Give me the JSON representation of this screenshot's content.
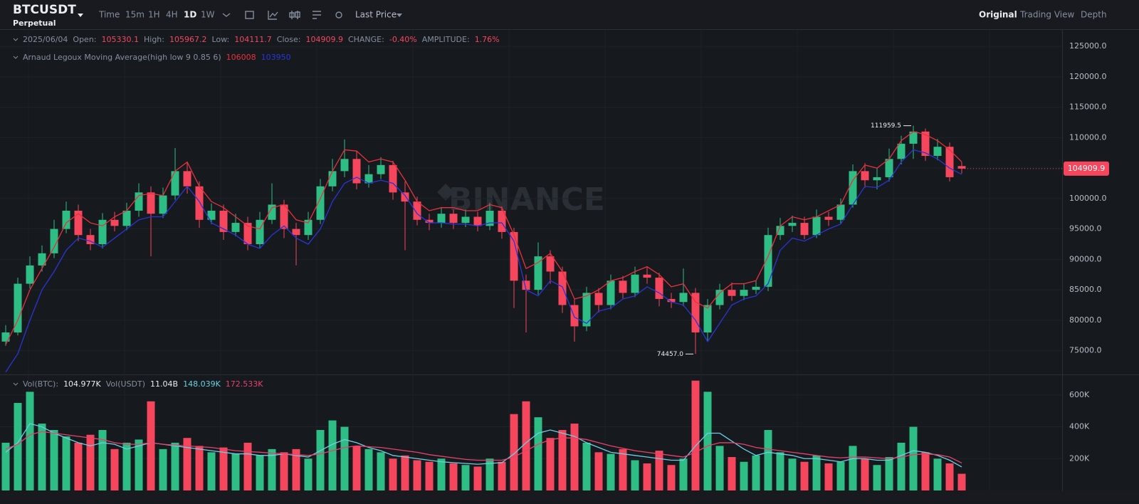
{
  "header": {
    "symbol": "BTCUSDT",
    "contract": "Perpetual",
    "intervals": [
      "Time",
      "15m",
      "1H",
      "4H",
      "1D",
      "1W"
    ],
    "active_interval": 4,
    "price_type": "Last Price",
    "views": [
      "Original",
      "Trading View",
      "Depth"
    ],
    "active_view": 0
  },
  "chart_data": {
    "type": "candlestick",
    "watermark": "BINANCE",
    "legend": {
      "date": "2025/06/04",
      "labels": [
        "Open:",
        "High:",
        "Low:",
        "Close:"
      ],
      "change_label": "CHANGE:",
      "change": "-0.40%",
      "amplitude_label": "AMPLITUDE:",
      "amplitude": "1.76%"
    },
    "indicator": "Arnaud Legoux Moving Average(high  low  9  0.85  6)",
    "up_color": "#2ebd85",
    "down_color": "#f6465d",
    "open": [
      76500,
      78000,
      86000,
      89000,
      91000,
      95000,
      98000,
      94000,
      92500,
      96500,
      95500,
      98000,
      101000,
      97500,
      100500,
      104500,
      102000,
      96500,
      98000,
      94500,
      96000,
      92500,
      96500,
      99000,
      95000,
      94000,
      96500,
      102000,
      104500,
      106500,
      102500,
      104000,
      105500,
      101000,
      99500,
      96500,
      96000,
      97500,
      96000,
      97000,
      95500,
      98000,
      94500,
      86500,
      85000,
      90500,
      88000,
      82500,
      79000,
      84500,
      82500,
      86500,
      84500,
      87500,
      87000,
      83500,
      83000,
      84500,
      78000,
      82500,
      85000,
      84000,
      85000,
      85500,
      94000,
      95500,
      96000,
      94000,
      97000,
      96500,
      99000,
      104500,
      103000,
      103500,
      106500,
      109000,
      111000,
      107000,
      108500,
      105330.1
    ],
    "high": [
      79200,
      87000,
      90500,
      92300,
      96500,
      99500,
      99000,
      95000,
      97600,
      97800,
      99300,
      102500,
      102000,
      101800,
      108300,
      106000,
      102800,
      99200,
      99000,
      97500,
      97000,
      97800,
      102500,
      99800,
      96000,
      97800,
      103200,
      106500,
      109700,
      107800,
      105500,
      106800,
      106200,
      102800,
      100300,
      97500,
      98600,
      98200,
      98200,
      97800,
      99300,
      98700,
      95200,
      87500,
      92800,
      91500,
      88800,
      83500,
      85500,
      85300,
      87500,
      87300,
      88800,
      88800,
      87800,
      84500,
      88500,
      85300,
      83500,
      86000,
      86200,
      86000,
      86500,
      95200,
      96800,
      97200,
      97000,
      98200,
      97800,
      100000,
      105600,
      105800,
      105000,
      108200,
      110300,
      111959.5,
      111500,
      109800,
      109200,
      105967.2
    ],
    "low": [
      75800,
      77500,
      85200,
      88000,
      90200,
      94300,
      93000,
      91500,
      91800,
      94600,
      94800,
      97000,
      90500,
      96800,
      99800,
      100800,
      95200,
      95800,
      93200,
      93800,
      91500,
      91800,
      95800,
      93500,
      89000,
      93200,
      95800,
      101200,
      103500,
      101500,
      101800,
      103200,
      99800,
      91500,
      95600,
      94800,
      95200,
      95000,
      95300,
      94600,
      94800,
      93400,
      82000,
      78000,
      84200,
      86000,
      81200,
      76500,
      78200,
      81300,
      81800,
      83600,
      83800,
      86000,
      82300,
      82000,
      82300,
      74457,
      76500,
      81800,
      83200,
      83300,
      84300,
      84800,
      93200,
      94500,
      93300,
      93500,
      95500,
      95800,
      98500,
      101800,
      101500,
      102800,
      105600,
      106500,
      106200,
      106300,
      102800,
      104111.7
    ],
    "close": [
      78000,
      86000,
      89000,
      91000,
      95000,
      98000,
      94000,
      92500,
      96500,
      95500,
      98000,
      101000,
      97500,
      100500,
      104500,
      102000,
      96500,
      98000,
      94500,
      96000,
      92500,
      96500,
      99000,
      95000,
      94000,
      96500,
      102000,
      104500,
      106500,
      102500,
      104000,
      105500,
      101000,
      99500,
      96500,
      96000,
      97500,
      96000,
      97000,
      95500,
      98000,
      94500,
      86500,
      85000,
      90500,
      88000,
      82500,
      79000,
      84500,
      82500,
      86500,
      84500,
      87500,
      87000,
      83500,
      83000,
      84500,
      78000,
      82500,
      85000,
      84000,
      85000,
      85500,
      94000,
      95500,
      96000,
      94000,
      97000,
      96500,
      99000,
      104500,
      103000,
      103500,
      106500,
      109000,
      111000,
      107000,
      108500,
      103500,
      104909.9
    ],
    "ma_lines": [
      {
        "color": "#e8313c",
        "values": [
          76000,
          80000,
          85000,
          88500,
          92000,
          96000,
          97500,
          96000,
          95500,
          97000,
          98000,
          100500,
          100800,
          100500,
          104500,
          106000,
          102000,
          99500,
          98500,
          97000,
          95500,
          95000,
          98500,
          99000,
          96500,
          96000,
          100000,
          104500,
          108000,
          107800,
          106000,
          106500,
          106000,
          103000,
          99500,
          98000,
          98500,
          98500,
          98000,
          98000,
          99000,
          98500,
          94000,
          88500,
          89500,
          91000,
          88000,
          83500,
          84000,
          85000,
          86500,
          87000,
          88000,
          88800,
          87500,
          85500,
          86000,
          83000,
          82000,
          84500,
          86000,
          86000,
          86500,
          90500,
          95500,
          97000,
          96500,
          97000,
          98000,
          99000,
          103000,
          105500,
          105000,
          106500,
          109500,
          111000,
          110500,
          109500,
          108000,
          106008
        ]
      },
      {
        "color": "#2a35d6",
        "values": [
          71500,
          74500,
          80000,
          85000,
          88000,
          91500,
          93500,
          93000,
          92000,
          93500,
          95000,
          96500,
          97000,
          97000,
          99500,
          102000,
          99500,
          96000,
          95000,
          94000,
          92500,
          91800,
          94000,
          95500,
          93500,
          92500,
          95000,
          99500,
          102500,
          103500,
          102500,
          103000,
          102500,
          100500,
          97500,
          96000,
          96000,
          95800,
          95800,
          95500,
          96000,
          96000,
          93000,
          85000,
          84000,
          86500,
          85500,
          80500,
          79500,
          81500,
          82000,
          83500,
          84000,
          85500,
          84500,
          83000,
          82500,
          80000,
          76500,
          79500,
          82500,
          83500,
          84000,
          86000,
          91500,
          93500,
          93000,
          94000,
          95000,
          95800,
          99000,
          102000,
          101800,
          103000,
          106000,
          108000,
          107500,
          106500,
          105000,
          103950
        ]
      }
    ],
    "ylim": [
      71100,
      127700
    ],
    "yticks": [
      {
        "value": 75000,
        "label": "75000.0"
      },
      {
        "value": 80000,
        "label": "80000.0"
      },
      {
        "value": 85000,
        "label": "85000.0"
      },
      {
        "value": 90000,
        "label": "90000.0"
      },
      {
        "value": 95000,
        "label": "95000.0"
      },
      {
        "value": 100000,
        "label": "100000.0"
      },
      {
        "value": 105000,
        "label": "105000.0"
      },
      {
        "value": 110000,
        "label": "110000.0"
      },
      {
        "value": 115000,
        "label": "115000.0"
      },
      {
        "value": 120000,
        "label": "120000.0"
      },
      {
        "value": 125000,
        "label": "125000.0"
      }
    ],
    "high_annotation": "111959.5",
    "low_annotation": "74457.0",
    "volume": {
      "legend": {
        "label": "Vol(BTC):",
        "value": "104.977K",
        "usdt_label": "Vol(USDT)",
        "usdt_value": "11.04B",
        "ma_values": [
          "148.039K",
          "172.533K"
        ]
      },
      "values": [
        300000,
        550000,
        620000,
        420000,
        380000,
        340000,
        300000,
        350000,
        380000,
        260000,
        300000,
        320000,
        560000,
        260000,
        300000,
        330000,
        280000,
        240000,
        270000,
        230000,
        300000,
        220000,
        260000,
        240000,
        260000,
        200000,
        380000,
        440000,
        400000,
        280000,
        260000,
        240000,
        200000,
        220000,
        190000,
        180000,
        200000,
        170000,
        160000,
        150000,
        200000,
        180000,
        480000,
        560000,
        460000,
        330000,
        380000,
        420000,
        300000,
        240000,
        230000,
        260000,
        190000,
        170000,
        250000,
        160000,
        200000,
        690000,
        620000,
        280000,
        210000,
        180000,
        220000,
        380000,
        240000,
        200000,
        180000,
        220000,
        170000,
        180000,
        280000,
        200000,
        160000,
        210000,
        300000,
        400000,
        240000,
        200000,
        170000,
        104977
      ],
      "ma_lines": [
        {
          "color": "#6ccfe4",
          "values": [
            240000,
            300000,
            420000,
            400000,
            360000,
            330000,
            300000,
            280000,
            300000,
            290000,
            260000,
            280000,
            300000,
            290000,
            280000,
            270000,
            260000,
            250000,
            240000,
            230000,
            230000,
            220000,
            220000,
            230000,
            220000,
            210000,
            250000,
            290000,
            320000,
            300000,
            270000,
            250000,
            220000,
            210000,
            200000,
            190000,
            180000,
            175000,
            170000,
            165000,
            170000,
            175000,
            230000,
            300000,
            360000,
            380000,
            360000,
            340000,
            300000,
            270000,
            240000,
            230000,
            220000,
            210000,
            200000,
            190000,
            190000,
            280000,
            360000,
            360000,
            310000,
            260000,
            220000,
            240000,
            230000,
            220000,
            200000,
            200000,
            190000,
            180000,
            200000,
            200000,
            190000,
            190000,
            220000,
            250000,
            240000,
            220000,
            190000,
            148039
          ]
        },
        {
          "color": "#e8416a",
          "values": [
            260000,
            290000,
            350000,
            370000,
            360000,
            350000,
            340000,
            330000,
            320000,
            300000,
            290000,
            290000,
            300000,
            290000,
            285000,
            280000,
            275000,
            270000,
            260000,
            250000,
            245000,
            240000,
            235000,
            230000,
            225000,
            220000,
            230000,
            250000,
            270000,
            280000,
            275000,
            270000,
            260000,
            250000,
            240000,
            225000,
            215000,
            205000,
            195000,
            190000,
            190000,
            190000,
            210000,
            250000,
            290000,
            320000,
            330000,
            330000,
            320000,
            300000,
            280000,
            265000,
            250000,
            240000,
            230000,
            220000,
            210000,
            240000,
            280000,
            300000,
            300000,
            290000,
            270000,
            260000,
            250000,
            240000,
            230000,
            220000,
            210000,
            205000,
            210000,
            210000,
            205000,
            200000,
            210000,
            225000,
            230000,
            225000,
            210000,
            172533
          ]
        }
      ],
      "ylim": [
        0,
        720000
      ],
      "yticks": [
        {
          "value": 200000,
          "label": "200K"
        },
        {
          "value": 400000,
          "label": "400K"
        },
        {
          "value": 600000,
          "label": "600K"
        }
      ]
    }
  }
}
